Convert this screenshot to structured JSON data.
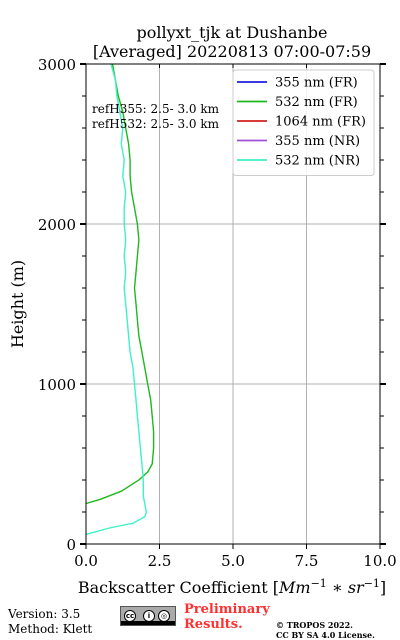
{
  "chart_data": {
    "type": "line",
    "title": "pollyxt_tjk at Dushanbe",
    "subtitle": "[Averaged] 20220813 07:00-07:59",
    "xlabel": "Backscatter Coefficient [Mm^-1 * sr^-1]",
    "ylabel": "Height (m)",
    "xlim": [
      0,
      10
    ],
    "ylim": [
      0,
      3000
    ],
    "xticks": [
      "0.0",
      "2.5",
      "5.0",
      "7.5",
      "10.0"
    ],
    "yticks": [
      "0",
      "1000",
      "2000",
      "3000"
    ],
    "grid": true,
    "legend_position": "top-right",
    "annotations": [
      "refH355:  2.5- 3.0 km",
      "refH532:  2.5- 3.0 km"
    ],
    "series": [
      {
        "name": "355 nm (FR)",
        "color": "#1f1fe0",
        "points": []
      },
      {
        "name": "532 nm (FR)",
        "color": "#1fb81f",
        "points": [
          [
            -0.05,
            250
          ],
          [
            0.5,
            280
          ],
          [
            1.2,
            330
          ],
          [
            1.8,
            400
          ],
          [
            2.1,
            450
          ],
          [
            2.25,
            500
          ],
          [
            2.3,
            600
          ],
          [
            2.3,
            700
          ],
          [
            2.25,
            800
          ],
          [
            2.2,
            900
          ],
          [
            2.1,
            1000
          ],
          [
            2.0,
            1100
          ],
          [
            1.9,
            1200
          ],
          [
            1.8,
            1300
          ],
          [
            1.75,
            1400
          ],
          [
            1.7,
            1500
          ],
          [
            1.65,
            1600
          ],
          [
            1.7,
            1700
          ],
          [
            1.75,
            1800
          ],
          [
            1.8,
            1900
          ],
          [
            1.75,
            2000
          ],
          [
            1.65,
            2100
          ],
          [
            1.55,
            2200
          ],
          [
            1.5,
            2300
          ],
          [
            1.5,
            2400
          ],
          [
            1.45,
            2500
          ],
          [
            1.35,
            2600
          ],
          [
            1.25,
            2700
          ],
          [
            1.1,
            2800
          ],
          [
            1.0,
            2900
          ],
          [
            0.9,
            3000
          ]
        ]
      },
      {
        "name": "1064 nm (FR)",
        "color": "#d42020",
        "points": []
      },
      {
        "name": "355 nm (NR)",
        "color": "#a050d8",
        "points": []
      },
      {
        "name": "532 nm (NR)",
        "color": "#40f0c8",
        "points": [
          [
            0,
            60
          ],
          [
            0.8,
            100
          ],
          [
            1.6,
            130
          ],
          [
            2.0,
            170
          ],
          [
            2.05,
            200
          ],
          [
            2.0,
            250
          ],
          [
            1.95,
            300
          ],
          [
            1.95,
            400
          ],
          [
            1.9,
            500
          ],
          [
            1.85,
            600
          ],
          [
            1.8,
            700
          ],
          [
            1.75,
            800
          ],
          [
            1.7,
            900
          ],
          [
            1.65,
            1000
          ],
          [
            1.6,
            1100
          ],
          [
            1.5,
            1200
          ],
          [
            1.45,
            1300
          ],
          [
            1.4,
            1400
          ],
          [
            1.35,
            1500
          ],
          [
            1.3,
            1600
          ],
          [
            1.35,
            1700
          ],
          [
            1.3,
            1800
          ],
          [
            1.35,
            1900
          ],
          [
            1.3,
            2000
          ],
          [
            1.3,
            2100
          ],
          [
            1.35,
            2200
          ],
          [
            1.25,
            2300
          ],
          [
            1.3,
            2400
          ],
          [
            1.2,
            2500
          ],
          [
            1.25,
            2600
          ],
          [
            1.15,
            2700
          ],
          [
            1.05,
            2800
          ],
          [
            1.0,
            2900
          ],
          [
            0.85,
            3000
          ]
        ]
      }
    ]
  },
  "footer": {
    "version": "Version: 3.5",
    "method": "Method: Klett",
    "preliminary_line1": "Preliminary",
    "preliminary_line2": "Results.",
    "copyright_line1": "© TROPOS 2022.",
    "copyright_line2": "CC BY SA 4.0 License."
  }
}
